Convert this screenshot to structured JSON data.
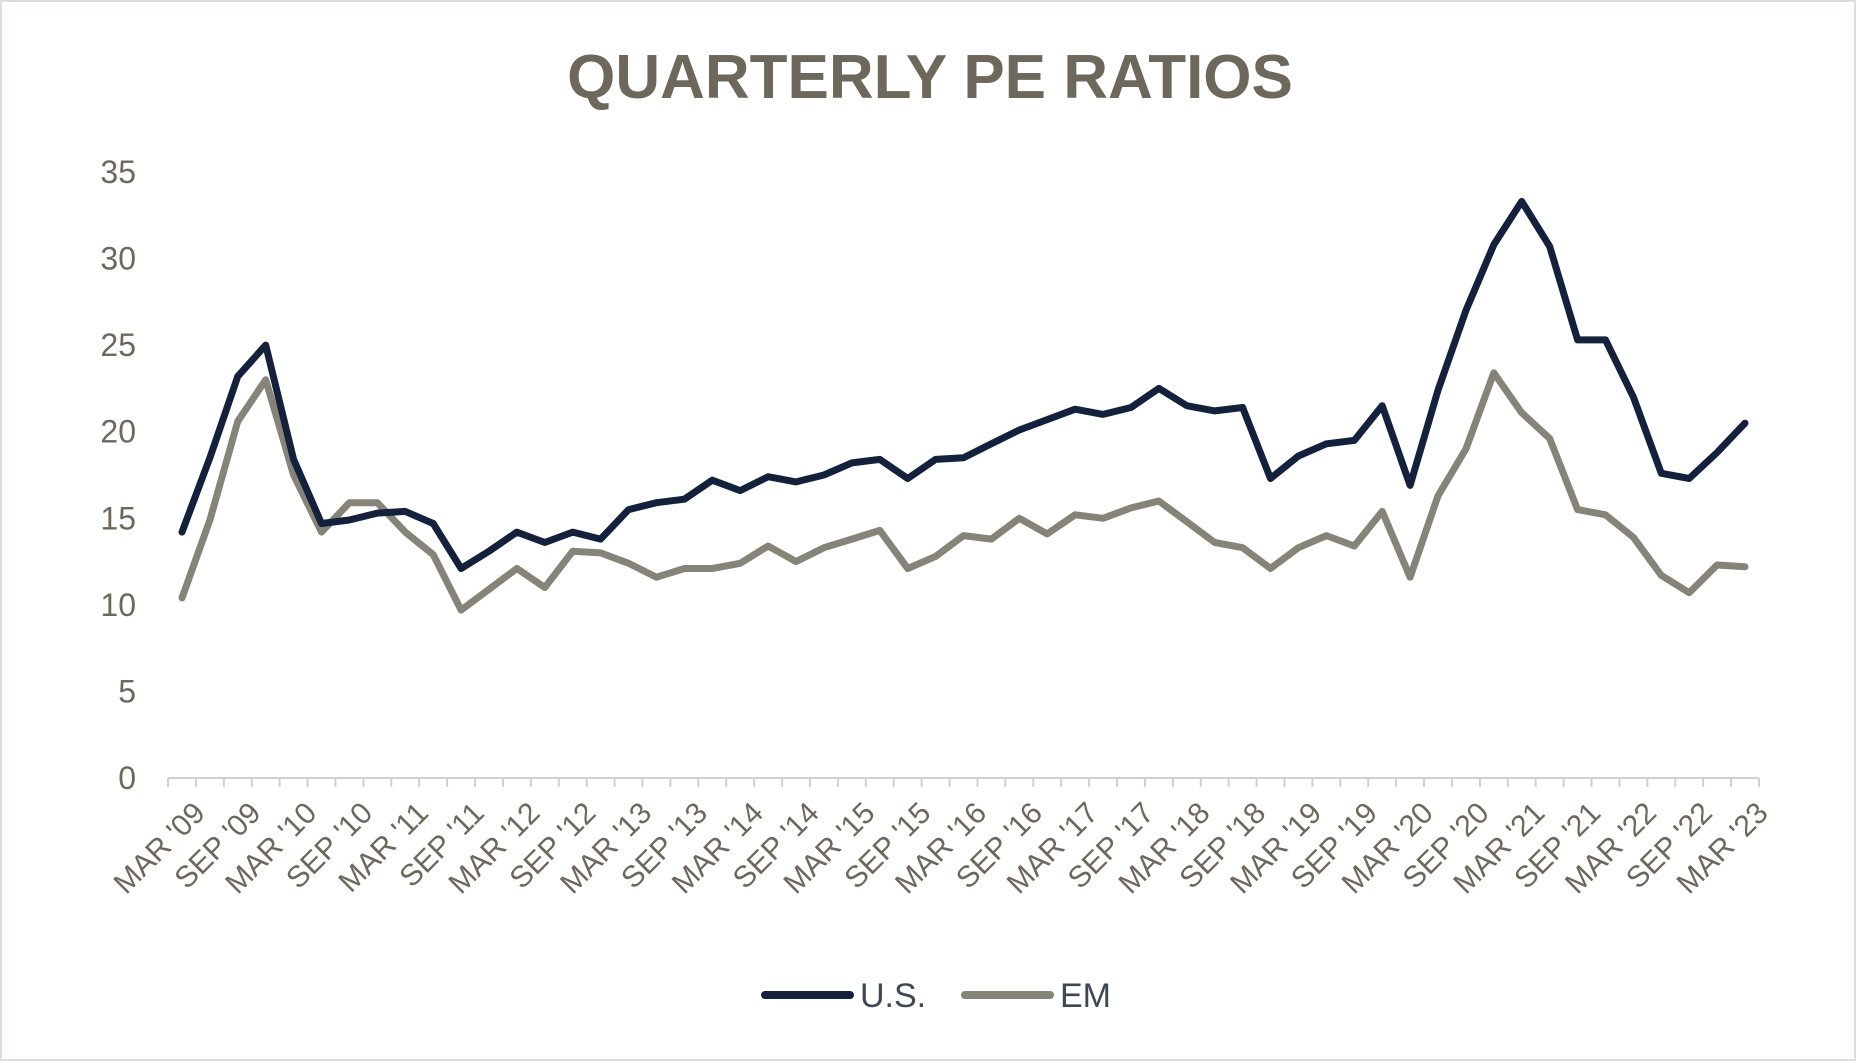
{
  "chart_data": {
    "type": "line",
    "title": "QUARTERLY PE RATIOS",
    "xlabel": "",
    "ylabel": "",
    "ylim": [
      0,
      35
    ],
    "yticks": [
      0,
      5,
      10,
      15,
      20,
      25,
      30,
      35
    ],
    "x_tick_labels": [
      "MAR '09",
      "SEP '09",
      "MAR '10",
      "SEP '10",
      "MAR '11",
      "SEP '11",
      "MAR '12",
      "SEP '12",
      "MAR '13",
      "SEP '13",
      "MAR '14",
      "SEP '14",
      "MAR '15",
      "SEP '15",
      "MAR '16",
      "SEP '16",
      "MAR '17",
      "SEP '17",
      "MAR '18",
      "SEP '18",
      "MAR '19",
      "SEP '19",
      "MAR '20",
      "SEP '20",
      "MAR '21",
      "SEP '21",
      "MAR '22",
      "SEP '22",
      "MAR '23"
    ],
    "categories": [
      "MAR '09",
      "JUN '09",
      "SEP '09",
      "DEC '09",
      "MAR '10",
      "JUN '10",
      "SEP '10",
      "DEC '10",
      "MAR '11",
      "JUN '11",
      "SEP '11",
      "DEC '11",
      "MAR '12",
      "JUN '12",
      "SEP '12",
      "DEC '12",
      "MAR '13",
      "JUN '13",
      "SEP '13",
      "DEC '13",
      "MAR '14",
      "JUN '14",
      "SEP '14",
      "DEC '14",
      "MAR '15",
      "JUN '15",
      "SEP '15",
      "DEC '15",
      "MAR '16",
      "JUN '16",
      "SEP '16",
      "DEC '16",
      "MAR '17",
      "JUN '17",
      "SEP '17",
      "DEC '17",
      "MAR '18",
      "JUN '18",
      "SEP '18",
      "DEC '18",
      "MAR '19",
      "JUN '19",
      "SEP '19",
      "DEC '19",
      "MAR '20",
      "JUN '20",
      "SEP '20",
      "DEC '20",
      "MAR '21",
      "JUN '21",
      "SEP '21",
      "DEC '21",
      "MAR '22",
      "JUN '22",
      "SEP '22",
      "DEC '22",
      "MAR '23"
    ],
    "series": [
      {
        "name": "U.S.",
        "color": "#14213d",
        "values": [
          14.2,
          18.5,
          23.2,
          25.0,
          18.4,
          14.7,
          14.9,
          15.3,
          15.4,
          14.7,
          12.1,
          13.1,
          14.2,
          13.6,
          14.2,
          13.8,
          15.5,
          15.9,
          16.1,
          17.2,
          16.6,
          17.4,
          17.1,
          17.5,
          18.2,
          18.4,
          17.3,
          18.4,
          18.5,
          19.3,
          20.1,
          20.7,
          21.3,
          21.0,
          21.4,
          22.5,
          21.5,
          21.2,
          21.4,
          17.3,
          18.6,
          19.3,
          19.5,
          21.5,
          16.9,
          22.4,
          27.0,
          30.8,
          33.3,
          30.7,
          25.3,
          25.3,
          22.0,
          17.6,
          17.3,
          18.8,
          20.5
        ]
      },
      {
        "name": "EM",
        "color": "#868378",
        "values": [
          10.4,
          14.9,
          20.6,
          23.0,
          17.5,
          14.2,
          15.9,
          15.9,
          14.2,
          12.9,
          9.7,
          10.9,
          12.1,
          11.0,
          13.1,
          13.0,
          12.4,
          11.6,
          12.1,
          12.1,
          12.4,
          13.4,
          12.5,
          13.3,
          13.8,
          14.3,
          12.1,
          12.8,
          14.0,
          13.8,
          15.0,
          14.1,
          15.2,
          15.0,
          15.6,
          16.0,
          14.8,
          13.6,
          13.3,
          12.1,
          13.3,
          14.0,
          13.4,
          15.4,
          11.6,
          16.3,
          19.0,
          23.4,
          21.1,
          19.6,
          15.5,
          15.2,
          13.9,
          11.7,
          10.7,
          12.3,
          12.2
        ]
      }
    ],
    "grid": false,
    "legend_position": "bottom-center"
  }
}
